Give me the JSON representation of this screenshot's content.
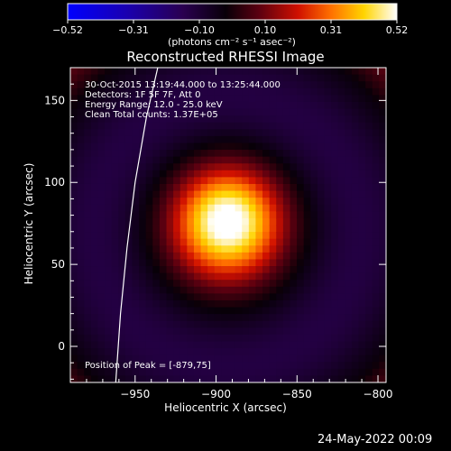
{
  "chart_data": {
    "type": "heatmap",
    "title": "Reconstructed RHESSI Image",
    "xlabel": "Heliocentric X (arcsec)",
    "ylabel": "Heliocentric Y (arcsec)",
    "xlim": [
      -990,
      -795
    ],
    "ylim": [
      -22,
      170
    ],
    "xticks": [
      -950,
      -900,
      -850,
      -800
    ],
    "yticks": [
      0,
      50,
      100,
      150
    ],
    "colorbar": {
      "ticks": [
        "-0.52",
        "-0.31",
        "-0.10",
        "0.10",
        "0.31",
        "0.52"
      ],
      "label": "(photons cm⁻² s⁻¹ asec⁻²)",
      "range": [
        -0.52,
        0.52
      ]
    },
    "annotations": [
      "30-Oct-2015 13:19:44.000 to 13:25:44.000",
      "Detectors: 1F 5F 7F, Att 0",
      "Energy Range: 12.0 - 25.0 keV",
      "Clean    Total counts: 1.37E+05"
    ],
    "peak_label": "Position of Peak = [-879,75]",
    "source_center": [
      -893,
      76
    ],
    "source_peak": 0.52,
    "ring_center": [
      -893,
      70
    ],
    "ring_radius": 82,
    "ring_value": -0.18,
    "background_value": 0.05,
    "limb_curve": [
      [
        -962,
        -22
      ],
      [
        -959,
        20
      ],
      [
        -955,
        60
      ],
      [
        -950,
        100
      ],
      [
        -943,
        140
      ],
      [
        -936,
        170
      ]
    ]
  },
  "footer": {
    "date": "24-May-2022 00:09"
  }
}
